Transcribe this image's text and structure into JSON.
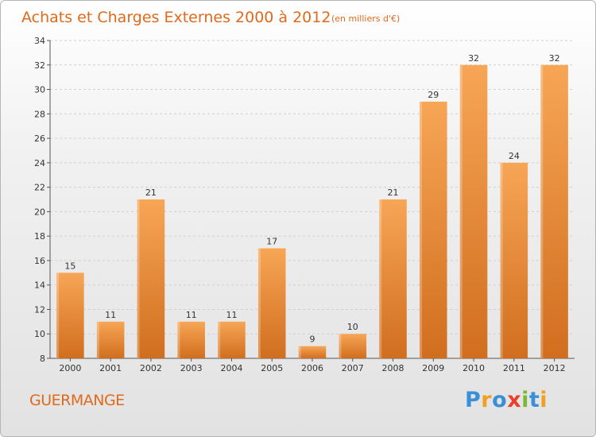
{
  "header": {
    "title": "Achats et Charges Externes 2000 à 2012",
    "unit": "(en milliers d'€)"
  },
  "footer": {
    "commune": "GUERMANGE",
    "logo_letters": [
      {
        "ch": "P",
        "color": "#3a8fd6"
      },
      {
        "ch": "r",
        "color": "#f0a020"
      },
      {
        "ch": "o",
        "color": "#3a8fd6"
      },
      {
        "ch": "x",
        "color": "#e8402a"
      },
      {
        "ch": "i",
        "color": "#7ab83a"
      },
      {
        "ch": "t",
        "color": "#3a8fd6"
      },
      {
        "ch": "i",
        "color": "#f0a020"
      }
    ]
  },
  "colors": {
    "bar_top": "#f7a656",
    "bar_bottom": "#d06e1e",
    "title": "#e06a1c",
    "grid": "#d0d0d0"
  },
  "chart_data": {
    "type": "bar",
    "categories": [
      "2000",
      "2001",
      "2002",
      "2003",
      "2004",
      "2005",
      "2006",
      "2007",
      "2008",
      "2009",
      "2010",
      "2011",
      "2012"
    ],
    "values": [
      15,
      11,
      21,
      11,
      11,
      17,
      9,
      10,
      21,
      29,
      32,
      24,
      32
    ],
    "ylim": [
      8,
      34
    ],
    "yticks": [
      8,
      10,
      12,
      14,
      16,
      18,
      20,
      22,
      24,
      26,
      28,
      30,
      32,
      34
    ],
    "grid": true,
    "data_labels": true
  }
}
